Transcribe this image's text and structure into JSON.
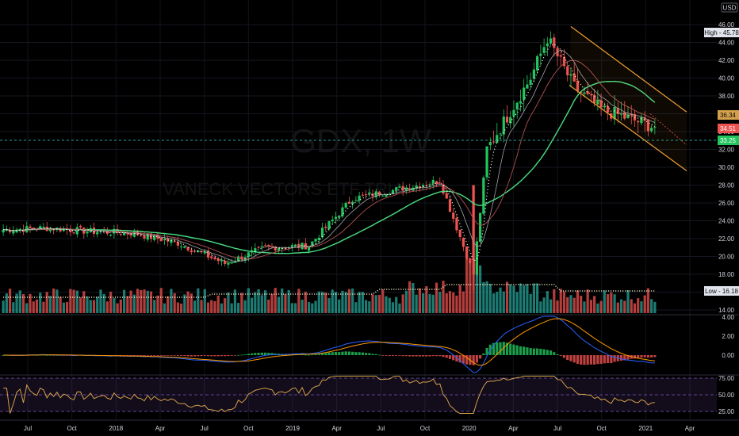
{
  "watermark": {
    "symbol": "GDX, 1W",
    "name": "VANECK VECTORS ETF TRU"
  },
  "currency": "USD",
  "price_axis": {
    "ticks": [
      "46.00",
      "44.00",
      "42.00",
      "40.00",
      "38.00",
      "36.00",
      "34.00",
      "32.00",
      "30.00",
      "28.00",
      "26.00",
      "24.00",
      "22.00",
      "20.00",
      "18.00",
      "16.00",
      "14.00"
    ],
    "high_badge": "High - 45.78",
    "low_badge": "Low - 16.18",
    "last_price": "34.51",
    "ma_price": "36.34",
    "line_price": "33.25"
  },
  "macd_axis": {
    "ticks": [
      "4.00",
      "2.00",
      "0.00",
      "-2.00"
    ]
  },
  "rsi_axis": {
    "ticks": [
      "75.00",
      "50.00",
      "25.00"
    ]
  },
  "time_axis": {
    "ticks": [
      "Jul",
      "Oct",
      "2018",
      "Apr",
      "Jul",
      "Oct",
      "2019",
      "Apr",
      "Jul",
      "Oct",
      "2020",
      "Apr",
      "Jul",
      "Oct",
      "2021",
      "Apr"
    ]
  },
  "colors": {
    "up": "#26a69a",
    "up_bright": "#22c55e",
    "down": "#ef5350",
    "ma_green": "#4ade80",
    "ma_dark": "#a3a3a3",
    "ma_red": "#b05050",
    "channel": "#f0a030",
    "macd": "#2962ff",
    "signal": "#ff9800",
    "rsi": "#d4a04a",
    "rsi_band": "#7e57c2",
    "dotted_line": "#26a69a"
  },
  "chart_data": {
    "type": "candlestick",
    "x_labels": [
      "Jul",
      "Oct",
      "2018",
      "Apr",
      "Jul",
      "Oct",
      "2019",
      "Apr",
      "Jul",
      "Oct",
      "2020",
      "Apr",
      "Jul",
      "Oct",
      "2021",
      "Apr"
    ],
    "price_range": [
      14,
      46
    ],
    "highest": 45.78,
    "lowest": 16.18,
    "last": 34.51,
    "key_closes": [
      {
        "x": "Jul 2017",
        "y": 23.0
      },
      {
        "x": "Oct 2017",
        "y": 23.2
      },
      {
        "x": "2018",
        "y": 22.8
      },
      {
        "x": "Apr 2018",
        "y": 22.6
      },
      {
        "x": "Jul 2018",
        "y": 21.5
      },
      {
        "x": "Oct 2018",
        "y": 19.2
      },
      {
        "x": "2019",
        "y": 21.0
      },
      {
        "x": "Apr 2019",
        "y": 21.2
      },
      {
        "x": "Jul 2019",
        "y": 26.5
      },
      {
        "x": "Oct 2019",
        "y": 27.5
      },
      {
        "x": "2020",
        "y": 28.5
      },
      {
        "x": "Mar 2020",
        "y": 18.0
      },
      {
        "x": "Apr 2020",
        "y": 32.0
      },
      {
        "x": "Jul 2020",
        "y": 40.0
      },
      {
        "x": "Aug 2020",
        "y": 44.5
      },
      {
        "x": "Oct 2020",
        "y": 39.0
      },
      {
        "x": "Dec 2020",
        "y": 36.5
      },
      {
        "x": "2021",
        "y": 34.51
      }
    ],
    "macd_range": [
      -2,
      4
    ],
    "rsi_range": [
      20,
      80
    ]
  }
}
